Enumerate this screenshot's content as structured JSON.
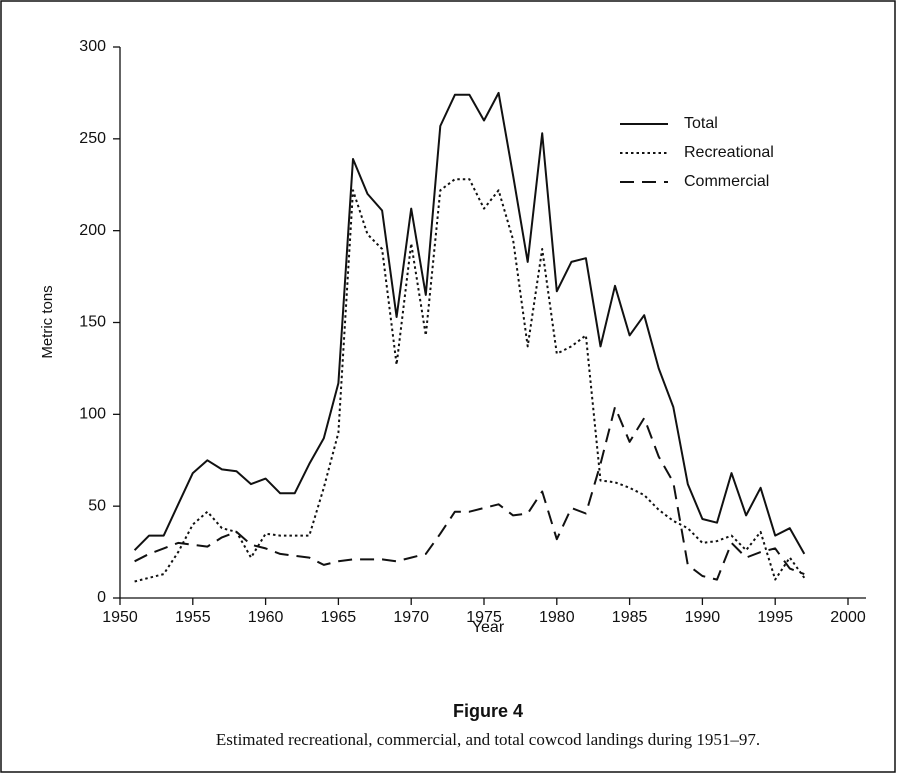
{
  "chart_data": {
    "type": "line",
    "figure_label": "Figure 4",
    "caption": "Estimated recreational, commercial, and total cowcod landings during 1951–97.",
    "xlabel": "Year",
    "ylabel": "Metric tons",
    "x": [
      1951,
      1952,
      1953,
      1954,
      1955,
      1956,
      1957,
      1958,
      1959,
      1960,
      1961,
      1962,
      1963,
      1964,
      1965,
      1966,
      1967,
      1968,
      1969,
      1970,
      1971,
      1972,
      1973,
      1974,
      1975,
      1976,
      1977,
      1978,
      1979,
      1980,
      1981,
      1982,
      1983,
      1984,
      1985,
      1986,
      1987,
      1988,
      1989,
      1990,
      1991,
      1992,
      1993,
      1994,
      1995,
      1996,
      1997
    ],
    "series": [
      {
        "name": "Total",
        "color": "#111111",
        "style": "solid",
        "values": [
          26,
          34,
          34,
          51,
          68,
          75,
          70,
          69,
          62,
          65,
          57,
          57,
          73,
          87,
          117,
          239,
          220,
          211,
          153,
          212,
          165,
          257,
          274,
          274,
          260,
          275,
          230,
          183,
          253,
          167,
          183,
          185,
          137,
          170,
          143,
          154,
          125,
          104,
          62,
          43,
          41,
          68,
          45,
          60,
          34,
          38,
          24
        ]
      },
      {
        "name": "Recreational",
        "color": "#111111",
        "style": "dotted",
        "values": [
          9,
          11,
          13,
          25,
          40,
          47,
          38,
          36,
          22,
          35,
          34,
          34,
          34,
          60,
          90,
          222,
          198,
          190,
          127,
          193,
          143,
          222,
          228,
          228,
          212,
          222,
          195,
          137,
          190,
          133,
          137,
          143,
          64,
          63,
          60,
          56,
          48,
          42,
          38,
          30,
          31,
          34,
          26,
          36,
          10,
          22,
          11
        ]
      },
      {
        "name": "Commercial",
        "color": "#111111",
        "style": "dashed",
        "values": [
          20,
          24,
          27,
          30,
          29,
          28,
          33,
          36,
          29,
          27,
          24,
          23,
          22,
          18,
          20,
          21,
          21,
          21,
          20,
          22,
          24,
          35,
          47,
          47,
          49,
          51,
          45,
          46,
          58,
          32,
          49,
          46,
          73,
          104,
          85,
          98,
          77,
          63,
          18,
          12,
          10,
          30,
          22,
          25,
          27,
          16,
          13
        ]
      }
    ],
    "xlim": [
      1950,
      2000
    ],
    "xticks": [
      1950,
      1955,
      1960,
      1965,
      1970,
      1975,
      1980,
      1985,
      1990,
      1995,
      2000
    ],
    "ylim": [
      0,
      300
    ],
    "yticks": [
      0,
      50,
      100,
      150,
      200,
      250,
      300
    ],
    "grid": false,
    "legend": "upper right"
  }
}
